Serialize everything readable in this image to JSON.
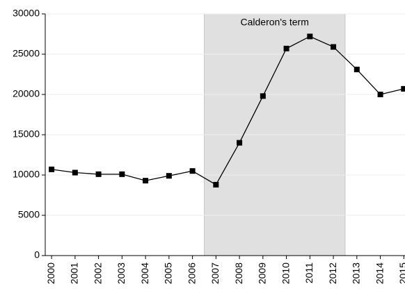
{
  "chart_data": {
    "type": "line",
    "x": [
      2000,
      2001,
      2002,
      2003,
      2004,
      2005,
      2006,
      2007,
      2008,
      2009,
      2010,
      2011,
      2012,
      2013,
      2014,
      2015
    ],
    "series": [
      {
        "color": "#000000",
        "values": [
          10700,
          10300,
          10100,
          10100,
          9300,
          9900,
          10500,
          8800,
          14000,
          19800,
          25700,
          27200,
          25900,
          23100,
          20000,
          20700
        ]
      }
    ],
    "xlim": [
      1999.73,
      2015.05
    ],
    "xticks": [
      2000,
      2001,
      2002,
      2003,
      2004,
      2005,
      2006,
      2007,
      2008,
      2009,
      2010,
      2011,
      2012,
      2013,
      2014,
      2015
    ],
    "ylim": [
      0,
      30000
    ],
    "yticks": [
      0,
      5000,
      10000,
      15000,
      20000,
      25000,
      30000
    ],
    "grid": true,
    "shaded_region": {
      "label": "Calderon's term",
      "range": [
        2006.5,
        2012.5
      ],
      "color": "#e0e0e0"
    }
  }
}
